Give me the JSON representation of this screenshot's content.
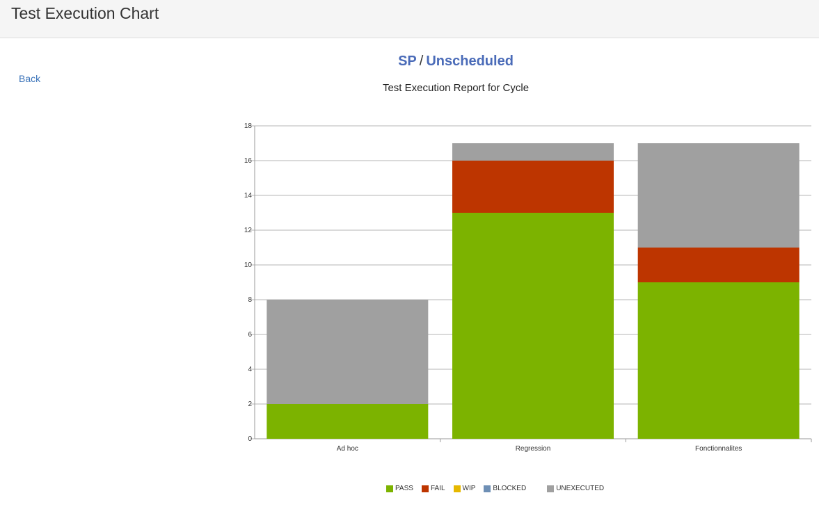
{
  "header": {
    "title": "Test Execution Chart"
  },
  "nav": {
    "back_label": "Back"
  },
  "cycle": {
    "project": "SP",
    "separator": "/",
    "name": "Unscheduled"
  },
  "chart_data": {
    "type": "bar",
    "stacked": true,
    "title": "Test Execution Report for Cycle",
    "categories": [
      "Ad hoc",
      "Regression",
      "Fonctionnalites"
    ],
    "series": [
      {
        "name": "PASS",
        "color": "#7cb300",
        "values": [
          2,
          13,
          9
        ]
      },
      {
        "name": "FAIL",
        "color": "#bd3500",
        "values": [
          0,
          3,
          2
        ]
      },
      {
        "name": "WIP",
        "color": "#e6b800",
        "values": [
          0,
          0,
          0
        ]
      },
      {
        "name": "BLOCKED",
        "color": "#6e8fb5",
        "values": [
          0,
          0,
          0
        ]
      },
      {
        "name": "UNEXECUTED",
        "color": "#a0a0a0",
        "values": [
          6,
          1,
          6
        ]
      }
    ],
    "ylim": [
      0,
      18
    ],
    "yticks": [
      0,
      2,
      4,
      6,
      8,
      10,
      12,
      14,
      16,
      18
    ],
    "xlabel": "",
    "ylabel": "",
    "grid": true,
    "legend_position": "bottom"
  }
}
